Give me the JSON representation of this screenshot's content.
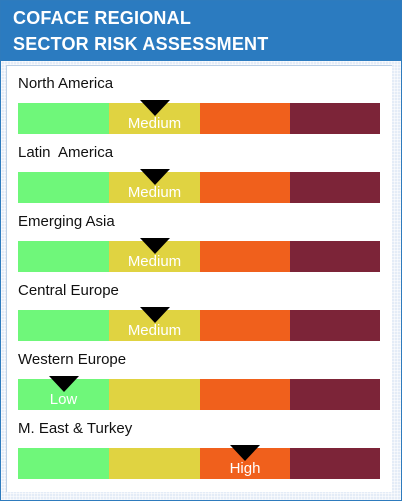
{
  "header": {
    "line1": "COFACE REGIONAL",
    "line2": "SECTOR RISK ASSESSMENT"
  },
  "scale": [
    {
      "name": "level-1",
      "color": "#6ff77a"
    },
    {
      "name": "level-2",
      "color": "#e0d341"
    },
    {
      "name": "level-3",
      "color": "#f0601c"
    },
    {
      "name": "level-4",
      "color": "#7c2438"
    }
  ],
  "chart_data": {
    "type": "bar",
    "title": "COFACE REGIONAL SECTOR RISK ASSESSMENT",
    "segments": 4,
    "categories": [
      "North America",
      "Latin  America",
      "Emerging Asia",
      "Central Europe",
      "Western Europe",
      "M. East & Turkey"
    ],
    "regions": [
      {
        "label": "North America",
        "level": 2,
        "level_text": "Medium"
      },
      {
        "label": "Latin  America",
        "level": 2,
        "level_text": "Medium"
      },
      {
        "label": "Emerging Asia",
        "level": 2,
        "level_text": "Medium"
      },
      {
        "label": "Central Europe",
        "level": 2,
        "level_text": "Medium"
      },
      {
        "label": "Western Europe",
        "level": 1,
        "level_text": "Low"
      },
      {
        "label": "M. East & Turkey",
        "level": 3,
        "level_text": "High"
      }
    ]
  }
}
